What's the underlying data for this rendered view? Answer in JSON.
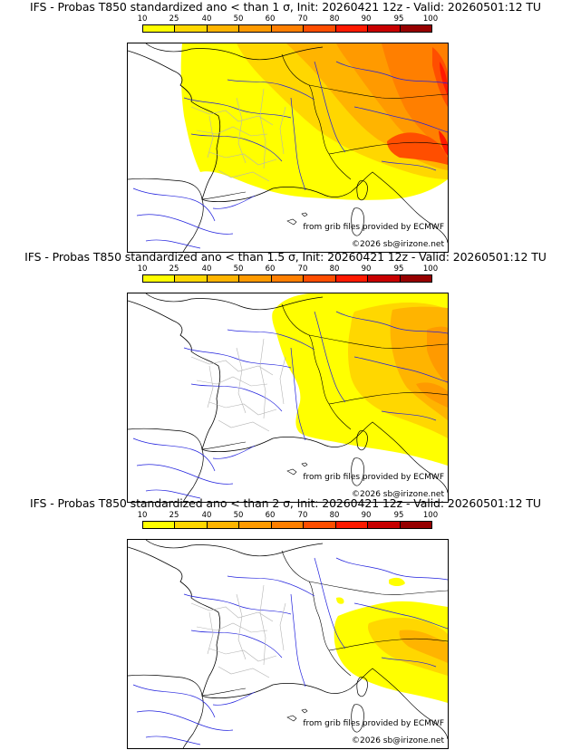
{
  "legend": {
    "ticks": [
      "10",
      "25",
      "40",
      "50",
      "60",
      "70",
      "80",
      "90",
      "95",
      "100"
    ],
    "colors": [
      "#ffff00",
      "#ffd700",
      "#ffb400",
      "#ff9a00",
      "#ff7f00",
      "#ff4e00",
      "#ff1a00",
      "#c80000",
      "#960000",
      "#5a0000"
    ]
  },
  "panels": [
    {
      "title": "IFS - Probas T850  standardized ano < than 1 σ, Init: 20260421 12z - Valid: 20260501:12 TU",
      "credit_source": "from grib files provided by ECMWF",
      "credit_copyright": "©2026 sb@irizone.net"
    },
    {
      "title": "IFS - Probas T850  standardized ano < than 1.5 σ, Init: 20260421 12z - Valid: 20260501:12 TU",
      "credit_source": "from grib files provided by ECMWF",
      "credit_copyright": "©2026 sb@irizone.net"
    },
    {
      "title": "IFS - Probas T850  standardized ano < than 2 σ, Init: 20260421 12z - Valid: 20260501:12 TU",
      "credit_source": "from grib files provided by ECMWF",
      "credit_copyright": "©2026 sb@irizone.net"
    }
  ]
}
